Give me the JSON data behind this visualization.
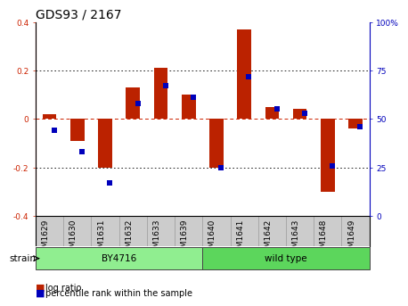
{
  "title": "GDS93 / 2167",
  "samples": [
    "GSM1629",
    "GSM1630",
    "GSM1631",
    "GSM1632",
    "GSM1633",
    "GSM1639",
    "GSM1640",
    "GSM1641",
    "GSM1642",
    "GSM1643",
    "GSM1648",
    "GSM1649"
  ],
  "log_ratio": [
    0.02,
    -0.09,
    -0.2,
    0.13,
    0.21,
    0.1,
    -0.2,
    0.37,
    0.05,
    0.04,
    -0.3,
    -0.04
  ],
  "percentile_rank": [
    44,
    33,
    17,
    58,
    67,
    61,
    25,
    72,
    55,
    53,
    26,
    46
  ],
  "groups": [
    {
      "label": "BY4716",
      "start": 0,
      "end": 6,
      "color": "#90EE90"
    },
    {
      "label": "wild type",
      "start": 6,
      "end": 12,
      "color": "#5CD65C"
    }
  ],
  "ylim_left": [
    -0.4,
    0.4
  ],
  "ylim_right": [
    0,
    100
  ],
  "left_yticks": [
    -0.4,
    -0.2,
    0.0,
    0.2,
    0.4
  ],
  "right_yticks": [
    0,
    25,
    50,
    75,
    100
  ],
  "right_yticklabels": [
    "0",
    "25",
    "50",
    "75",
    "100%"
  ],
  "bar_color": "#BB2200",
  "dot_color": "#0000BB",
  "zero_line_color": "#CC2200",
  "grid_color": "#000000",
  "background_plot": "#FFFFFF",
  "background_label": "#CCCCCC",
  "title_fontsize": 10,
  "tick_fontsize": 6.5,
  "label_fontsize": 7.5,
  "legend_fontsize": 7,
  "bar_width": 0.5,
  "dot_size": 18
}
